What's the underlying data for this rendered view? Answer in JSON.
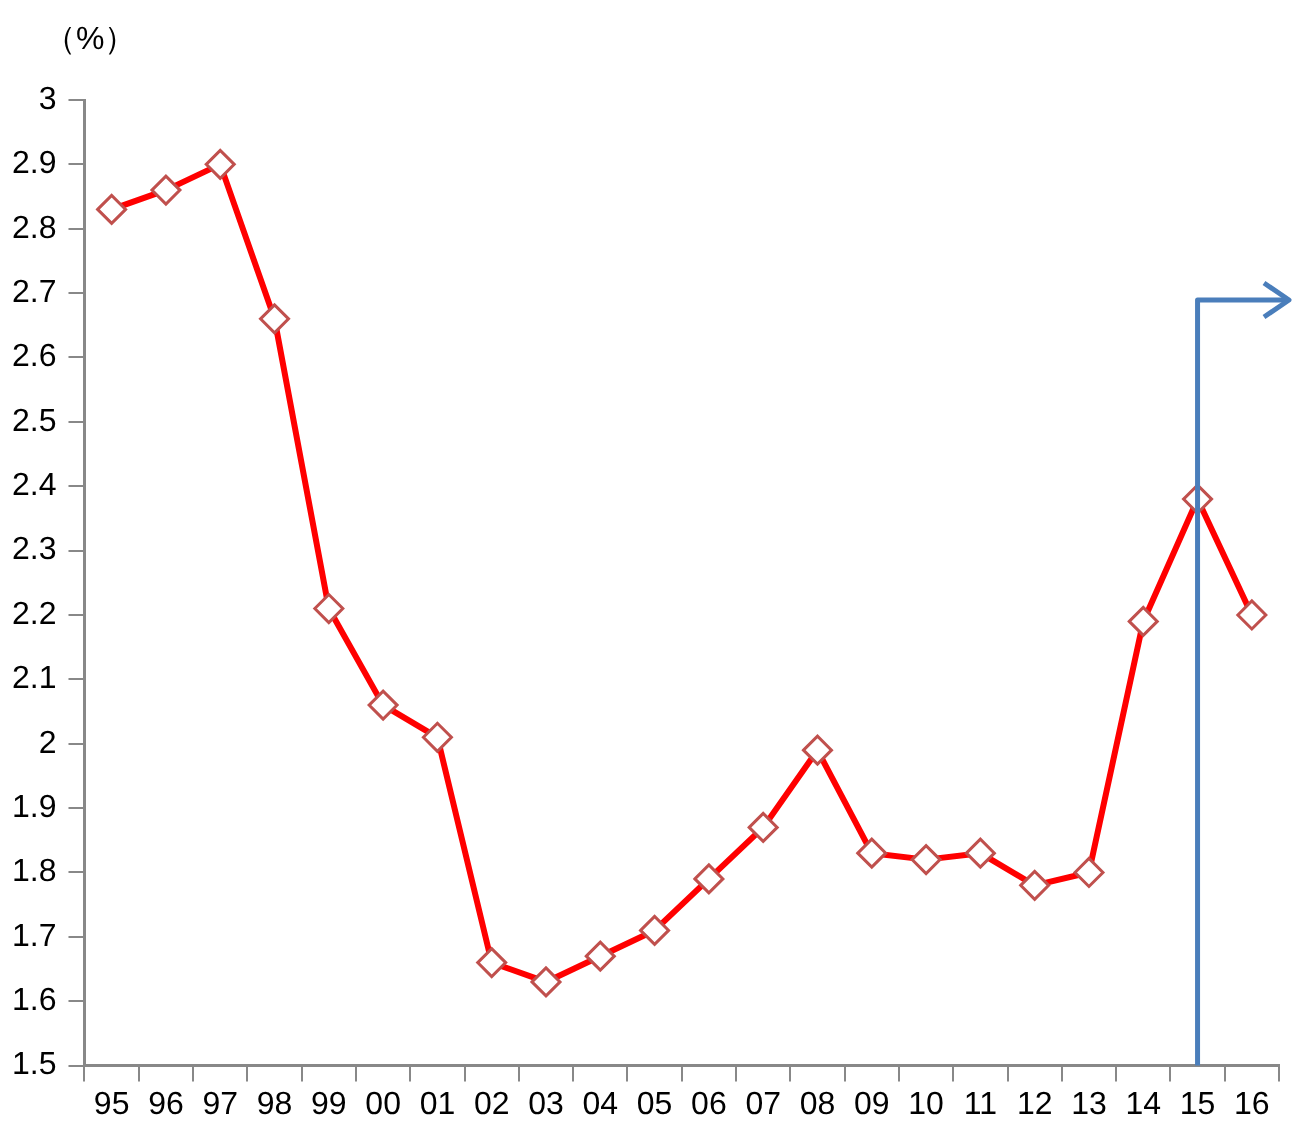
{
  "chart_data": {
    "type": "line",
    "ylabel": "（%）",
    "categories": [
      "95",
      "96",
      "97",
      "98",
      "99",
      "00",
      "01",
      "02",
      "03",
      "04",
      "05",
      "06",
      "07",
      "08",
      "09",
      "10",
      "11",
      "12",
      "13",
      "14",
      "15",
      "16"
    ],
    "series": [
      {
        "color": "#ff0000",
        "values": [
          2.83,
          2.86,
          2.9,
          2.66,
          2.21,
          2.06,
          2.01,
          1.66,
          1.63,
          1.67,
          1.71,
          1.79,
          1.87,
          1.99,
          1.83,
          1.82,
          1.83,
          1.78,
          1.8,
          2.19,
          2.38,
          2.2
        ]
      }
    ],
    "ylim": [
      1.5,
      3
    ],
    "yticks": [
      1.5,
      1.6,
      1.7,
      1.8,
      1.9,
      2,
      2.1,
      2.2,
      2.3,
      2.4,
      2.5,
      2.6,
      2.7,
      2.8,
      2.9,
      3
    ],
    "ref_lines": [
      {
        "axis": "x",
        "value": "15",
        "color": "#4a7ebb",
        "line_style": "solid"
      }
    ],
    "grid": false,
    "legend": false,
    "marker": "diamond",
    "line_style": "solid"
  }
}
